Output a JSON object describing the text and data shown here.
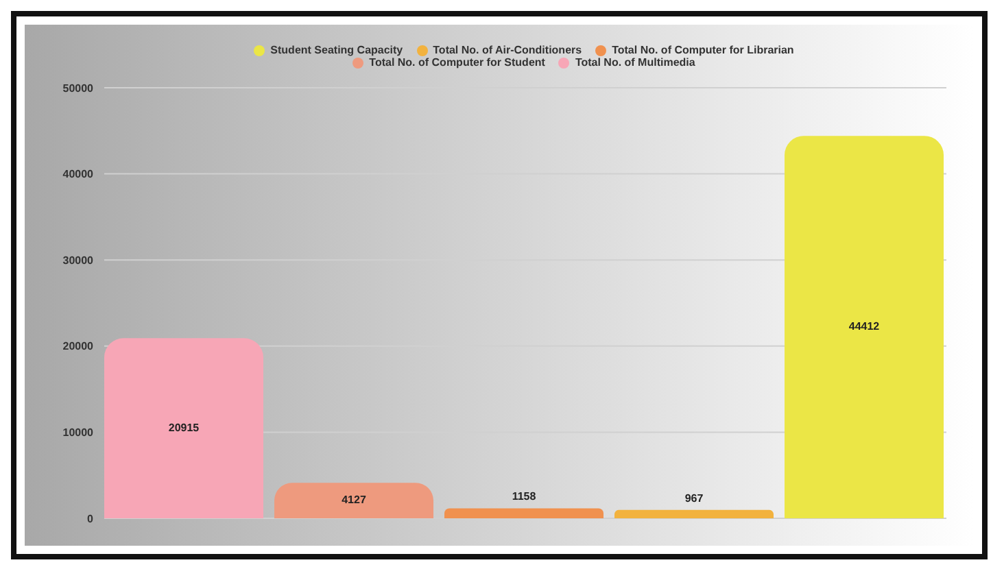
{
  "chart_data": {
    "type": "bar",
    "categories": [
      null
    ],
    "series": [
      {
        "name": "Total No. of Multimedia",
        "color": "#f7a6b6",
        "values": [
          20915
        ]
      },
      {
        "name": "Total No. of Computer for Student",
        "color": "#ee9a7e",
        "values": [
          4127
        ]
      },
      {
        "name": "Total No. of Computer for Librarian",
        "color": "#f0914f",
        "values": [
          1158
        ]
      },
      {
        "name": "Total No. of Air-Conditioners",
        "color": "#f2b23e",
        "values": [
          967
        ]
      },
      {
        "name": "Student Seating Capacity",
        "color": "#ebe646",
        "values": [
          44412
        ]
      }
    ],
    "ylim": [
      0,
      50000
    ],
    "yticks": [
      0,
      10000,
      20000,
      30000,
      40000,
      50000
    ],
    "grid": "y",
    "legend": "top",
    "data_labels": true
  }
}
